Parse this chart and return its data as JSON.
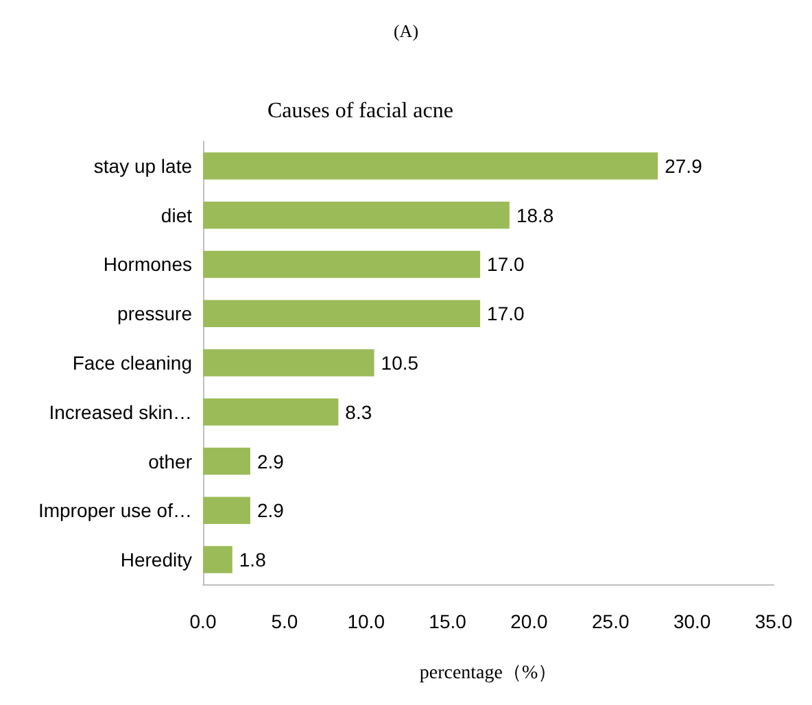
{
  "chart_data": {
    "type": "bar",
    "orientation": "horizontal",
    "title": "Causes of facial acne",
    "xlabel": "percentage（%）",
    "annotations": [
      "(A)"
    ],
    "categories": [
      "stay up late",
      "diet",
      "Hormones",
      "pressure",
      "Face cleaning",
      "Increased skin…",
      "other",
      "Improper use of…",
      "Heredity"
    ],
    "values": [
      27.9,
      18.8,
      17.0,
      17.0,
      10.5,
      8.3,
      2.9,
      2.9,
      1.8
    ],
    "value_labels": [
      "27.9",
      "18.8",
      "17.0",
      "17.0",
      "10.5",
      "8.3",
      "2.9",
      "2.9",
      "1.8"
    ],
    "color": "#9bbb59",
    "xlim": [
      0,
      35
    ],
    "xticks": [
      {
        "value": 0,
        "label": "0.0"
      },
      {
        "value": 5,
        "label": "5.0"
      },
      {
        "value": 10,
        "label": "10.0"
      },
      {
        "value": 15,
        "label": "15.0"
      },
      {
        "value": 20,
        "label": "20.0"
      },
      {
        "value": 25,
        "label": "25.0"
      },
      {
        "value": 30,
        "label": "30.0"
      },
      {
        "value": 35,
        "label": "35.0"
      }
    ],
    "grid": false
  }
}
